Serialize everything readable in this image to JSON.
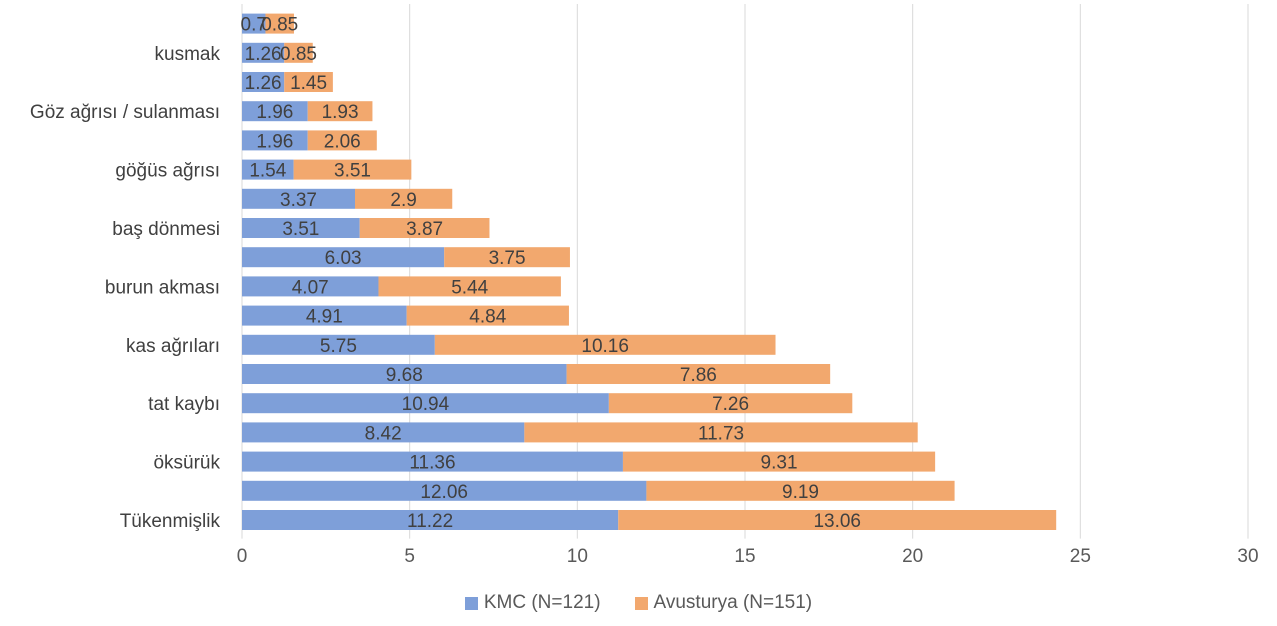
{
  "chart_data": {
    "type": "bar",
    "orientation": "horizontal",
    "stacked": true,
    "categories": [
      "",
      "kusmak",
      "",
      "Göz ağrısı / sulanması",
      "",
      "göğüs ağrısı",
      "",
      "baş dönmesi",
      "",
      "burun akması",
      "",
      "kas ağrıları",
      "",
      "tat kaybı",
      "",
      "öksürük",
      "",
      "Tükenmişlik"
    ],
    "series": [
      {
        "name": "KMC (N=121)",
        "color": "#7e9fd9",
        "values": [
          0.7,
          1.26,
          1.26,
          1.96,
          1.96,
          1.54,
          3.37,
          3.51,
          6.03,
          4.07,
          4.91,
          5.75,
          9.68,
          10.94,
          8.42,
          11.36,
          12.06,
          11.22
        ],
        "labels": [
          "0.7",
          "1.26",
          "1.26",
          "1.96",
          "1.96",
          "1.54",
          "3.37",
          "3.51",
          "6.03",
          "4.07",
          "4.91",
          "5.75",
          "9.68",
          "10.94",
          "8.42",
          "11.36",
          "12.06",
          "11.22"
        ]
      },
      {
        "name": "Avusturya (N=151)",
        "color": "#f2a86e",
        "values": [
          0.85,
          0.85,
          1.45,
          1.93,
          2.06,
          3.51,
          2.9,
          3.87,
          3.75,
          5.44,
          4.84,
          10.16,
          7.86,
          7.26,
          11.73,
          9.31,
          9.19,
          13.06
        ],
        "labels": [
          "0.85",
          "0.85",
          "1.45",
          "1.93",
          "2.06",
          "3.51",
          "2.9",
          "3.87",
          "3.75",
          "5.44",
          "4.84",
          "10.16",
          "7.86",
          "7.26",
          "11.73",
          "9.31",
          "9.19",
          "13.06"
        ]
      }
    ],
    "xlim": [
      0,
      30
    ],
    "xticks": [
      "0",
      "5",
      "10",
      "15",
      "20",
      "25",
      "30"
    ],
    "grid": true,
    "legend_position": "bottom"
  }
}
